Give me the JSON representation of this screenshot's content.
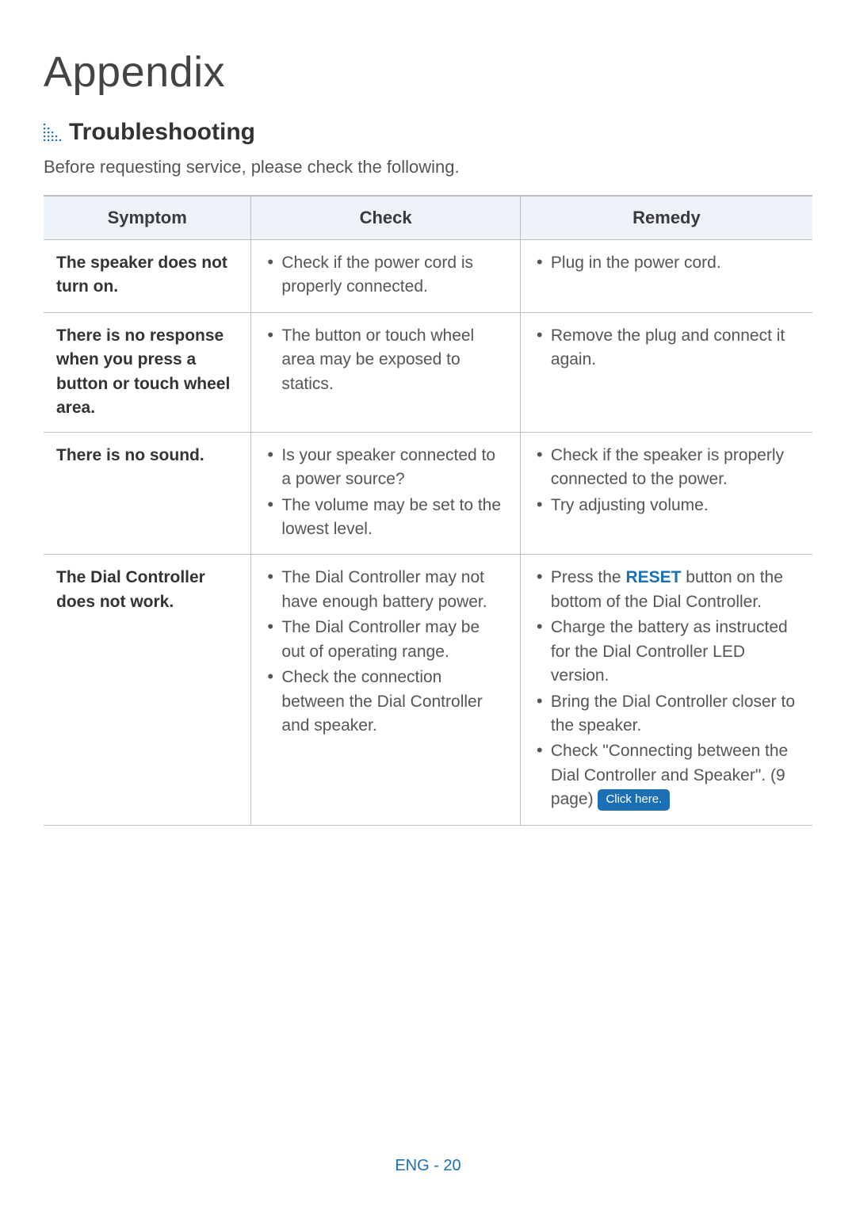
{
  "title": "Appendix",
  "section_heading": "Troubleshooting",
  "icon_color": "#1b6fb5",
  "intro": "Before requesting service, please check the following.",
  "table": {
    "header_bg": "#edf3f8",
    "border_color": "#b8c0c6",
    "columns": {
      "symptom": "Symptom",
      "check": "Check",
      "remedy": "Remedy"
    },
    "rows": [
      {
        "symptom": "The speaker does not turn on.",
        "check": [
          "Check if the power cord is properly connected."
        ],
        "remedy": [
          {
            "text": "Plug in the power cord."
          }
        ]
      },
      {
        "symptom": "There is no response when you press a button or touch wheel area.",
        "check": [
          "The button or touch wheel area may be exposed to statics."
        ],
        "remedy": [
          {
            "text": "Remove the plug and connect it again."
          }
        ]
      },
      {
        "symptom": "There is no sound.",
        "check": [
          "Is your speaker connected to a power source?",
          "The volume may be set to the lowest level."
        ],
        "remedy": [
          {
            "text": "Check if the speaker is properly connected to the power."
          },
          {
            "text": "Try adjusting volume."
          }
        ]
      },
      {
        "symptom": "The Dial Controller does not work.",
        "check": [
          "The Dial Controller may not have enough battery power.",
          "The Dial Controller may be out of operating range.",
          "Check the connection between the Dial Controller and speaker."
        ],
        "remedy": [
          {
            "pre": "Press the ",
            "reset": "RESET",
            "post": " button on the bottom of the Dial Controller."
          },
          {
            "text": "Charge the battery as instructed for the Dial Controller LED version."
          },
          {
            "text": "Bring the Dial Controller closer to the speaker."
          },
          {
            "text_pre": "Check \"Connecting between the Dial Controller and Speaker\". (9 page) ",
            "click_here": "Click here."
          }
        ]
      }
    ]
  },
  "footer": "ENG - 20"
}
